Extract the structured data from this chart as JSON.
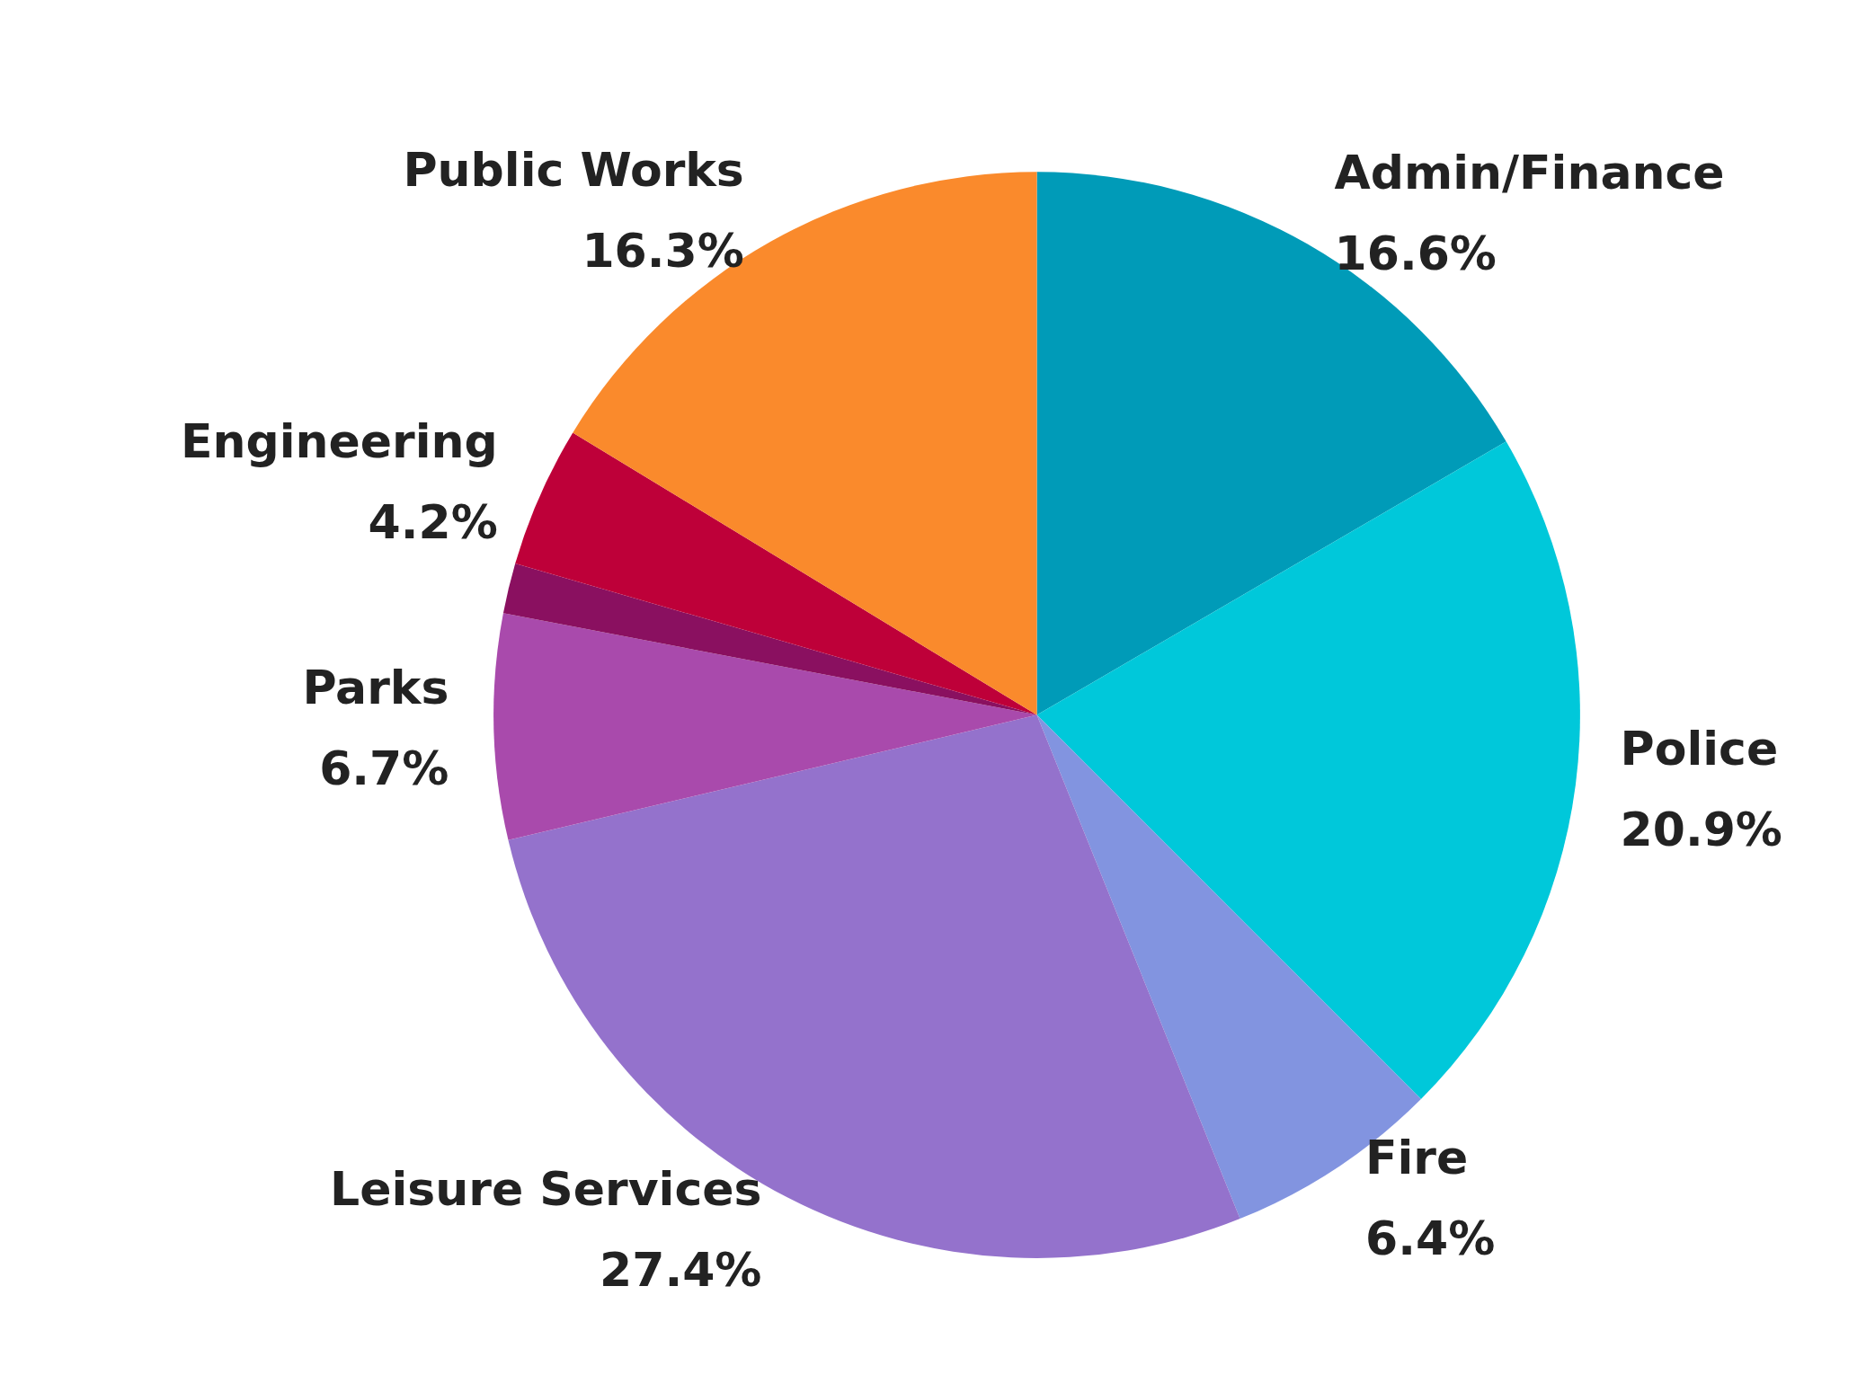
{
  "chart_data": {
    "type": "pie",
    "categories": [
      "Admin/Finance",
      "Police",
      "Fire",
      "Leisure Services",
      "Parks",
      null,
      "Engineering",
      "Public Works"
    ],
    "values": [
      16.6,
      20.9,
      6.4,
      27.4,
      6.7,
      1.5,
      4.2,
      16.3
    ],
    "value_labels": [
      "16.6%",
      "20.9%",
      "6.4%",
      "27.4%",
      "6.7%",
      null,
      "4.2%",
      "16.3%"
    ],
    "colors": [
      "#009bb8",
      "#00c8da",
      "#8294e0",
      "#9472cc",
      "#a94aac",
      "#8a1060",
      "#be0039",
      "#fa8a2c"
    ]
  }
}
